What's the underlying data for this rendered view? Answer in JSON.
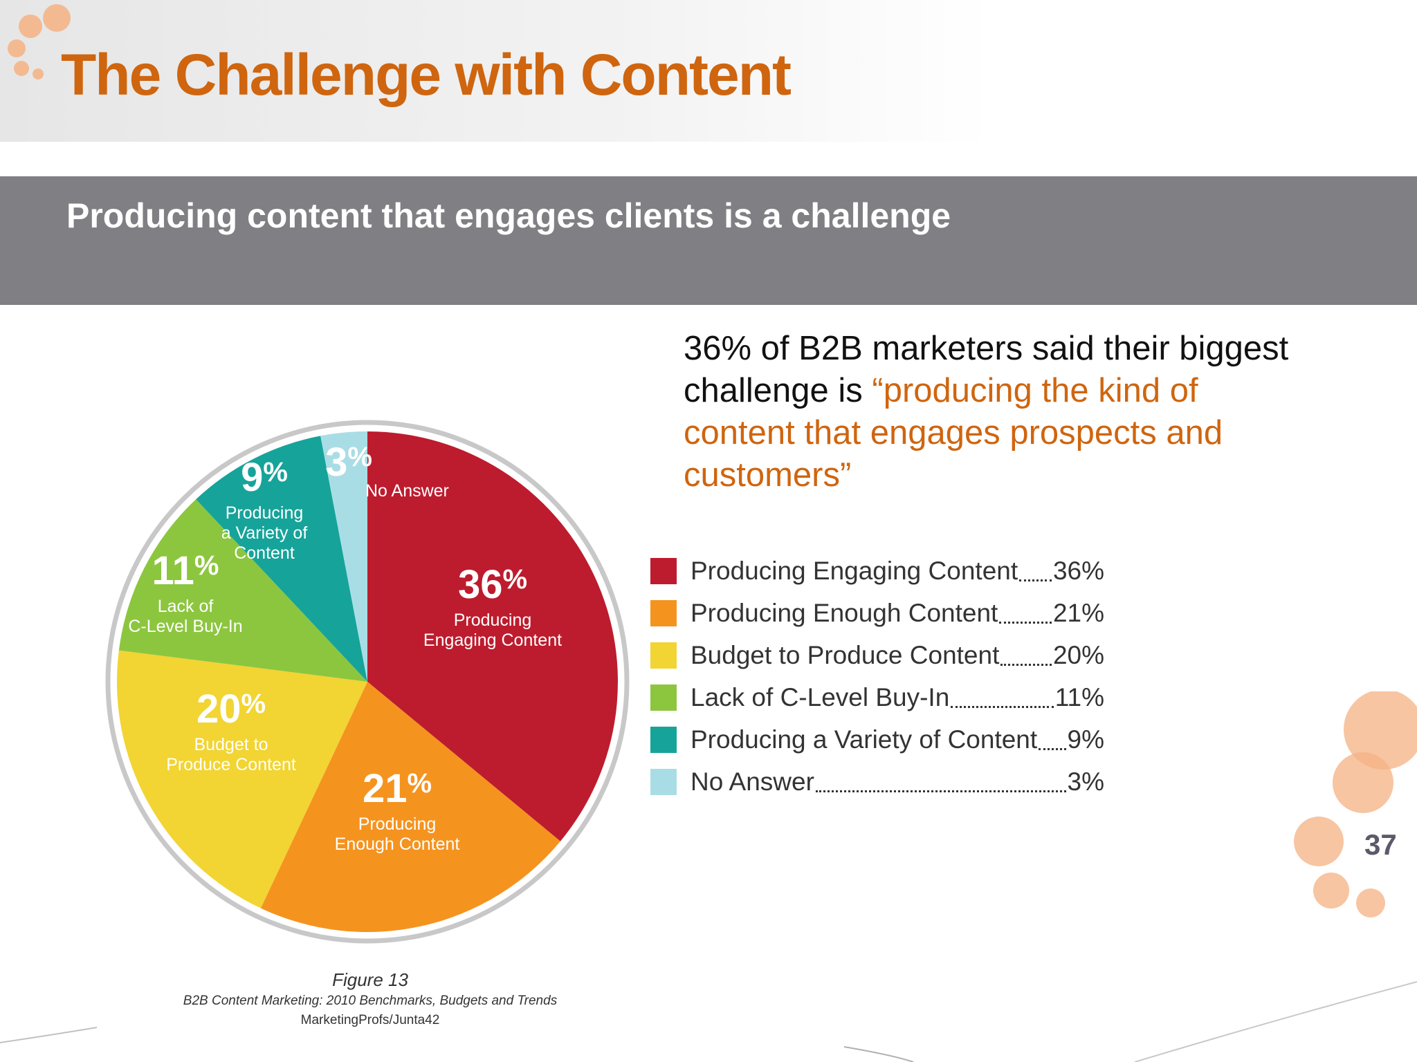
{
  "slide": {
    "title": "The Challenge with Content",
    "subtitle": "Producing content that engages clients is a challenge",
    "quote_plain": "36% of B2B marketers said their biggest  challenge is ",
    "quote_highlight": "“producing the kind of content that engages prospects and customers”",
    "page_number": "37"
  },
  "colors": {
    "accent": "#cf650f",
    "band": "#807f83",
    "decor_dots": "#f4b183"
  },
  "figure": {
    "caption": "Figure 13",
    "source_line1": "B2B Content Marketing: 2010 Benchmarks, Budgets and Trends",
    "source_line2": "MarketingProfs/Junta42"
  },
  "chart_data": {
    "type": "pie",
    "slices": [
      {
        "pct": "36",
        "value": 36,
        "color": "#bd1c2e",
        "label_lines": [
          "Producing",
          "Engaging Content"
        ],
        "legend": "Producing Engaging Content",
        "legend_value": "36%"
      },
      {
        "pct": "21",
        "value": 21,
        "color": "#f5931f",
        "label_lines": [
          "Producing",
          "Enough Content"
        ],
        "legend": "Producing Enough Content",
        "legend_value": "21%"
      },
      {
        "pct": "20",
        "value": 20,
        "color": "#f2d433",
        "label_lines": [
          "Budget to",
          "Produce Content"
        ],
        "legend": "Budget to Produce Content",
        "legend_value": "20%"
      },
      {
        "pct": "11",
        "value": 11,
        "color": "#8cc63f",
        "label_lines": [
          "Lack of",
          "C-Level Buy-In"
        ],
        "legend": "Lack of C-Level Buy-In",
        "legend_value": "11%"
      },
      {
        "pct": "9",
        "value": 9,
        "color": "#16a39a",
        "label_lines": [
          "Producing",
          "a Variety of",
          "Content"
        ],
        "legend": "Producing a Variety of Content",
        "legend_value": "9%"
      },
      {
        "pct": "3",
        "value": 3,
        "color": "#a9dde5",
        "label_lines": [
          "No Answer"
        ],
        "legend": "No Answer",
        "legend_value": "3%"
      }
    ]
  }
}
